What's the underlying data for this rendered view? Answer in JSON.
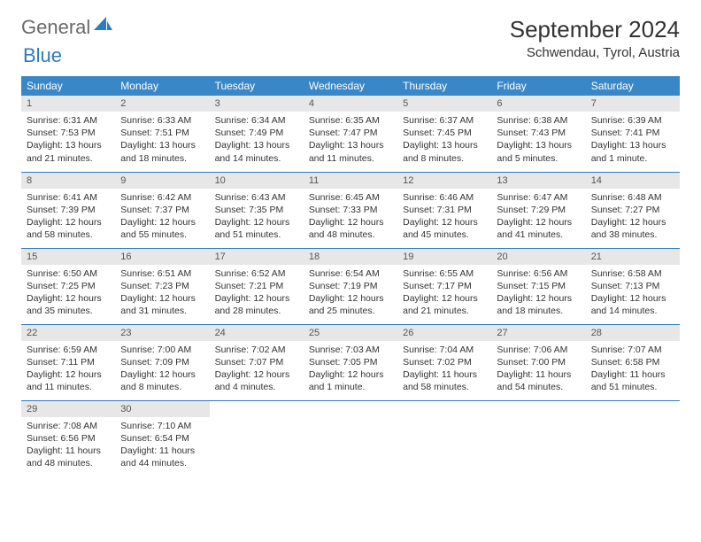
{
  "logo": {
    "text1": "General",
    "text2": "Blue",
    "color1": "#6a6a6a",
    "color2": "#2f7bbf"
  },
  "title": "September 2024",
  "location": "Schwendau, Tyrol, Austria",
  "colors": {
    "headerBg": "#3a87c8",
    "headerText": "#ffffff",
    "dayStripBg": "#e7e7e7",
    "ruleColor": "#2f7bbf",
    "bodyText": "#333333"
  },
  "dayHeaders": [
    "Sunday",
    "Monday",
    "Tuesday",
    "Wednesday",
    "Thursday",
    "Friday",
    "Saturday"
  ],
  "weeks": [
    [
      {
        "n": "1",
        "sr": "Sunrise: 6:31 AM",
        "ss": "Sunset: 7:53 PM",
        "dl": "Daylight: 13 hours and 21 minutes."
      },
      {
        "n": "2",
        "sr": "Sunrise: 6:33 AM",
        "ss": "Sunset: 7:51 PM",
        "dl": "Daylight: 13 hours and 18 minutes."
      },
      {
        "n": "3",
        "sr": "Sunrise: 6:34 AM",
        "ss": "Sunset: 7:49 PM",
        "dl": "Daylight: 13 hours and 14 minutes."
      },
      {
        "n": "4",
        "sr": "Sunrise: 6:35 AM",
        "ss": "Sunset: 7:47 PM",
        "dl": "Daylight: 13 hours and 11 minutes."
      },
      {
        "n": "5",
        "sr": "Sunrise: 6:37 AM",
        "ss": "Sunset: 7:45 PM",
        "dl": "Daylight: 13 hours and 8 minutes."
      },
      {
        "n": "6",
        "sr": "Sunrise: 6:38 AM",
        "ss": "Sunset: 7:43 PM",
        "dl": "Daylight: 13 hours and 5 minutes."
      },
      {
        "n": "7",
        "sr": "Sunrise: 6:39 AM",
        "ss": "Sunset: 7:41 PM",
        "dl": "Daylight: 13 hours and 1 minute."
      }
    ],
    [
      {
        "n": "8",
        "sr": "Sunrise: 6:41 AM",
        "ss": "Sunset: 7:39 PM",
        "dl": "Daylight: 12 hours and 58 minutes."
      },
      {
        "n": "9",
        "sr": "Sunrise: 6:42 AM",
        "ss": "Sunset: 7:37 PM",
        "dl": "Daylight: 12 hours and 55 minutes."
      },
      {
        "n": "10",
        "sr": "Sunrise: 6:43 AM",
        "ss": "Sunset: 7:35 PM",
        "dl": "Daylight: 12 hours and 51 minutes."
      },
      {
        "n": "11",
        "sr": "Sunrise: 6:45 AM",
        "ss": "Sunset: 7:33 PM",
        "dl": "Daylight: 12 hours and 48 minutes."
      },
      {
        "n": "12",
        "sr": "Sunrise: 6:46 AM",
        "ss": "Sunset: 7:31 PM",
        "dl": "Daylight: 12 hours and 45 minutes."
      },
      {
        "n": "13",
        "sr": "Sunrise: 6:47 AM",
        "ss": "Sunset: 7:29 PM",
        "dl": "Daylight: 12 hours and 41 minutes."
      },
      {
        "n": "14",
        "sr": "Sunrise: 6:48 AM",
        "ss": "Sunset: 7:27 PM",
        "dl": "Daylight: 12 hours and 38 minutes."
      }
    ],
    [
      {
        "n": "15",
        "sr": "Sunrise: 6:50 AM",
        "ss": "Sunset: 7:25 PM",
        "dl": "Daylight: 12 hours and 35 minutes."
      },
      {
        "n": "16",
        "sr": "Sunrise: 6:51 AM",
        "ss": "Sunset: 7:23 PM",
        "dl": "Daylight: 12 hours and 31 minutes."
      },
      {
        "n": "17",
        "sr": "Sunrise: 6:52 AM",
        "ss": "Sunset: 7:21 PM",
        "dl": "Daylight: 12 hours and 28 minutes."
      },
      {
        "n": "18",
        "sr": "Sunrise: 6:54 AM",
        "ss": "Sunset: 7:19 PM",
        "dl": "Daylight: 12 hours and 25 minutes."
      },
      {
        "n": "19",
        "sr": "Sunrise: 6:55 AM",
        "ss": "Sunset: 7:17 PM",
        "dl": "Daylight: 12 hours and 21 minutes."
      },
      {
        "n": "20",
        "sr": "Sunrise: 6:56 AM",
        "ss": "Sunset: 7:15 PM",
        "dl": "Daylight: 12 hours and 18 minutes."
      },
      {
        "n": "21",
        "sr": "Sunrise: 6:58 AM",
        "ss": "Sunset: 7:13 PM",
        "dl": "Daylight: 12 hours and 14 minutes."
      }
    ],
    [
      {
        "n": "22",
        "sr": "Sunrise: 6:59 AM",
        "ss": "Sunset: 7:11 PM",
        "dl": "Daylight: 12 hours and 11 minutes."
      },
      {
        "n": "23",
        "sr": "Sunrise: 7:00 AM",
        "ss": "Sunset: 7:09 PM",
        "dl": "Daylight: 12 hours and 8 minutes."
      },
      {
        "n": "24",
        "sr": "Sunrise: 7:02 AM",
        "ss": "Sunset: 7:07 PM",
        "dl": "Daylight: 12 hours and 4 minutes."
      },
      {
        "n": "25",
        "sr": "Sunrise: 7:03 AM",
        "ss": "Sunset: 7:05 PM",
        "dl": "Daylight: 12 hours and 1 minute."
      },
      {
        "n": "26",
        "sr": "Sunrise: 7:04 AM",
        "ss": "Sunset: 7:02 PM",
        "dl": "Daylight: 11 hours and 58 minutes."
      },
      {
        "n": "27",
        "sr": "Sunrise: 7:06 AM",
        "ss": "Sunset: 7:00 PM",
        "dl": "Daylight: 11 hours and 54 minutes."
      },
      {
        "n": "28",
        "sr": "Sunrise: 7:07 AM",
        "ss": "Sunset: 6:58 PM",
        "dl": "Daylight: 11 hours and 51 minutes."
      }
    ],
    [
      {
        "n": "29",
        "sr": "Sunrise: 7:08 AM",
        "ss": "Sunset: 6:56 PM",
        "dl": "Daylight: 11 hours and 48 minutes."
      },
      {
        "n": "30",
        "sr": "Sunrise: 7:10 AM",
        "ss": "Sunset: 6:54 PM",
        "dl": "Daylight: 11 hours and 44 minutes."
      },
      null,
      null,
      null,
      null,
      null
    ]
  ]
}
